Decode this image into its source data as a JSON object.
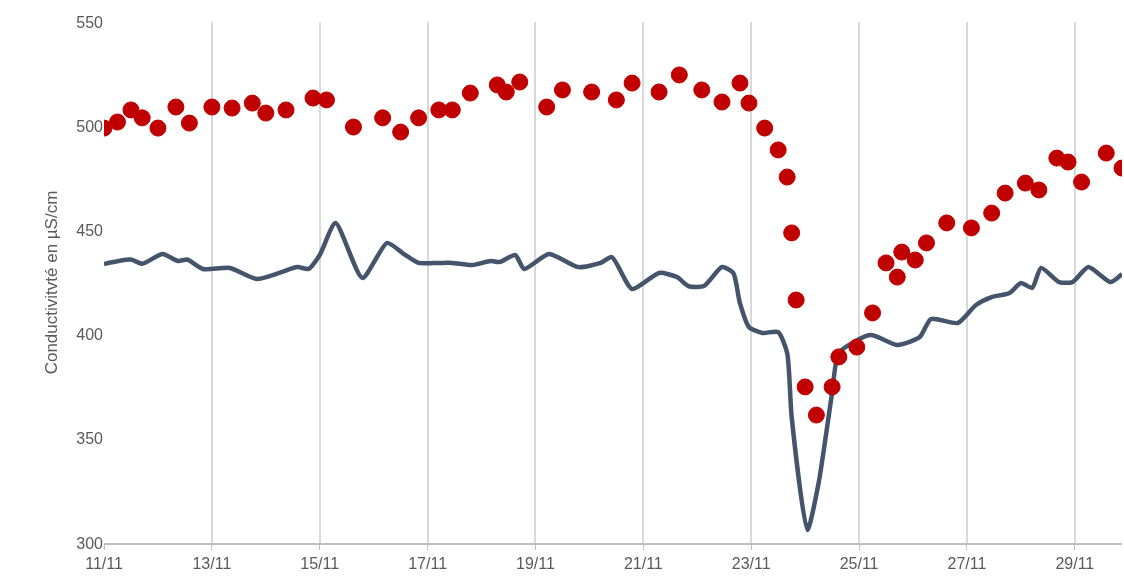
{
  "chart_data": {
    "type": "line",
    "ylabel": "Conductivitvté en µS/cm",
    "xlim": [
      "--11-11",
      "--11-29T21:00"
    ],
    "ylim": [
      300,
      550
    ],
    "xticks": [
      {
        "value": "--11-11",
        "label": "11/11"
      },
      {
        "value": "--11-13",
        "label": "13/11"
      },
      {
        "value": "--11-15",
        "label": "15/11"
      },
      {
        "value": "--11-17",
        "label": "17/11"
      },
      {
        "value": "--11-19",
        "label": "19/11"
      },
      {
        "value": "--11-21",
        "label": "21/11"
      },
      {
        "value": "--11-23",
        "label": "23/11"
      },
      {
        "value": "--11-25",
        "label": "25/11"
      },
      {
        "value": "--11-27",
        "label": "27/11"
      },
      {
        "value": "--11-29",
        "label": "29/11"
      }
    ],
    "yticks": [
      300,
      350,
      400,
      450,
      500,
      550
    ],
    "grid": "x",
    "series": [
      {
        "color": "#44546a",
        "marker": "none",
        "x": [
          "--11-11T00:00",
          "--11-11T12:00",
          "--11-11T17:00",
          "--11-12T02:00",
          "--11-12T09:00",
          "--11-12T13:00",
          "--11-12T20:00",
          "--11-13T08:00",
          "--11-13T20:00",
          "--11-14T06:00",
          "--11-14T14:00",
          "--11-14T19:00",
          "--11-15T00:00",
          "--11-15T07:00",
          "--11-15T19:00",
          "--11-16T06:00",
          "--11-16T13:00",
          "--11-16T20:00",
          "--11-17T05:00",
          "--11-17T11:00",
          "--11-17T20:00",
          "--11-18T04:00",
          "--11-18T08:00",
          "--11-18T15:00",
          "--11-18T19:00",
          "--11-19T06:00",
          "--11-19T19:00",
          "--11-20T05:00",
          "--11-20T10:00",
          "--11-20T19:00",
          "--11-21T07:00",
          "--11-21T15:00",
          "--11-21T20:00",
          "--11-22T03:00",
          "--11-22T11:00",
          "--11-22T16:00",
          "--11-22T19:00",
          "--11-22T23:00",
          "--11-23T05:00",
          "--11-23T12:00",
          "--11-23T16:00",
          "--11-23T18:00",
          "--11-24T01:00",
          "--11-24T06:00",
          "--11-24T12:00",
          "--11-24T15:00",
          "--11-25T05:00",
          "--11-25T17:00",
          "--11-26T03:00",
          "--11-26T08:00",
          "--11-26T20:00",
          "--11-27T04:00",
          "--11-27T11:00",
          "--11-27T19:00",
          "--11-28T00:00",
          "--11-28T05:00",
          "--11-28T09:00",
          "--11-28T17:00",
          "--11-28T23:00",
          "--11-29T06:00",
          "--11-29T16:00",
          "--11-29T21:00"
        ],
        "values": [
          433.9,
          436,
          434,
          438.7,
          435.3,
          436,
          431.5,
          432,
          426.7,
          429.6,
          432.4,
          431.5,
          438.2,
          453.5,
          427.2,
          444,
          439,
          434.4,
          434.4,
          434.4,
          433.4,
          435.3,
          434.8,
          438.2,
          431.5,
          438.7,
          432.4,
          434.4,
          437.2,
          421.9,
          429.6,
          427.6,
          423.3,
          423.3,
          432.4,
          429.6,
          415,
          403.6,
          400.8,
          401.2,
          391.2,
          360.5,
          306.2,
          328.8,
          372,
          391.2,
          399.8,
          395,
          398.8,
          407.5,
          405.6,
          414.2,
          418,
          420,
          424.8,
          422.4,
          432,
          425.2,
          425.2,
          432.4,
          425.2,
          429.1
        ]
      },
      {
        "type": "scatter",
        "color": "#c00000",
        "marker": "circle",
        "x": [
          "--11-11T00:00",
          "--11-11T06:00",
          "--11-11T12:00",
          "--11-11T17:00",
          "--11-12T00:00",
          "--11-12T08:00",
          "--11-12T14:00",
          "--11-13T00:00",
          "--11-13T05:00",
          "--11-13T09:00",
          "--11-13T18:00",
          "--11-14T00:00",
          "--11-14T09:00",
          "--11-14T21:00",
          "--11-15T03:00",
          "--11-15T15:00",
          "--11-16T04:00",
          "--11-16T12:00",
          "--11-16T20:00",
          "--11-17T05:00",
          "--11-17T11:00",
          "--11-17T19:00",
          "--11-18T07:00",
          "--11-18T11:00",
          "--11-18T17:00",
          "--11-19T05:00",
          "--11-19T12:00",
          "--11-20T01:00",
          "--11-20T12:00",
          "--11-20T19:00",
          "--11-21T07:00",
          "--11-21T16:00",
          "--11-22T02:00",
          "--11-22T11:00",
          "--11-22T19:00",
          "--11-22T23:00",
          "--11-23T06:00",
          "--11-23T12:00",
          "--11-23T16:00",
          "--11-23T18:00",
          "--11-23T20:00",
          "--11-24T00:00",
          "--11-24T05:00",
          "--11-24T12:00",
          "--11-24T15:00",
          "--11-24T23:00",
          "--11-25T06:00",
          "--11-25T12:00",
          "--11-25T17:00",
          "--11-25T19:00",
          "--11-26T01:00",
          "--11-26T06:00",
          "--11-26T15:00",
          "--11-27T02:00",
          "--11-27T11:00",
          "--11-27T17:00",
          "--11-28T02:00",
          "--11-28T08:00",
          "--11-28T16:00",
          "--11-28T21:00",
          "--11-29T03:00",
          "--11-29T14:00",
          "--11-29T21:00"
        ],
        "values": [
          499.1,
          502,
          507.8,
          504,
          499.1,
          509.2,
          501.5,
          509.2,
          null,
          508.7,
          511.1,
          506.3,
          507.8,
          513.5,
          512.6,
          499.6,
          504,
          497.2,
          504,
          507.8,
          507.8,
          515.9,
          519.8,
          516.4,
          521.2,
          509.2,
          517.4,
          516.4,
          512.6,
          520.7,
          516.4,
          524.6,
          517.4,
          511.6,
          520.7,
          511.1,
          499.1,
          488.6,
          475.6,
          448.8,
          416.6,
          374.9,
          361.4,
          374.9,
          389.3,
          394,
          410.4,
          434.4,
          427.6,
          439.6,
          435.8,
          444,
          453.6,
          451.2,
          458.3,
          467.9,
          472.7,
          469.4,
          484.7,
          482.8,
          473.2,
          487.1,
          479.9
        ]
      }
    ]
  }
}
